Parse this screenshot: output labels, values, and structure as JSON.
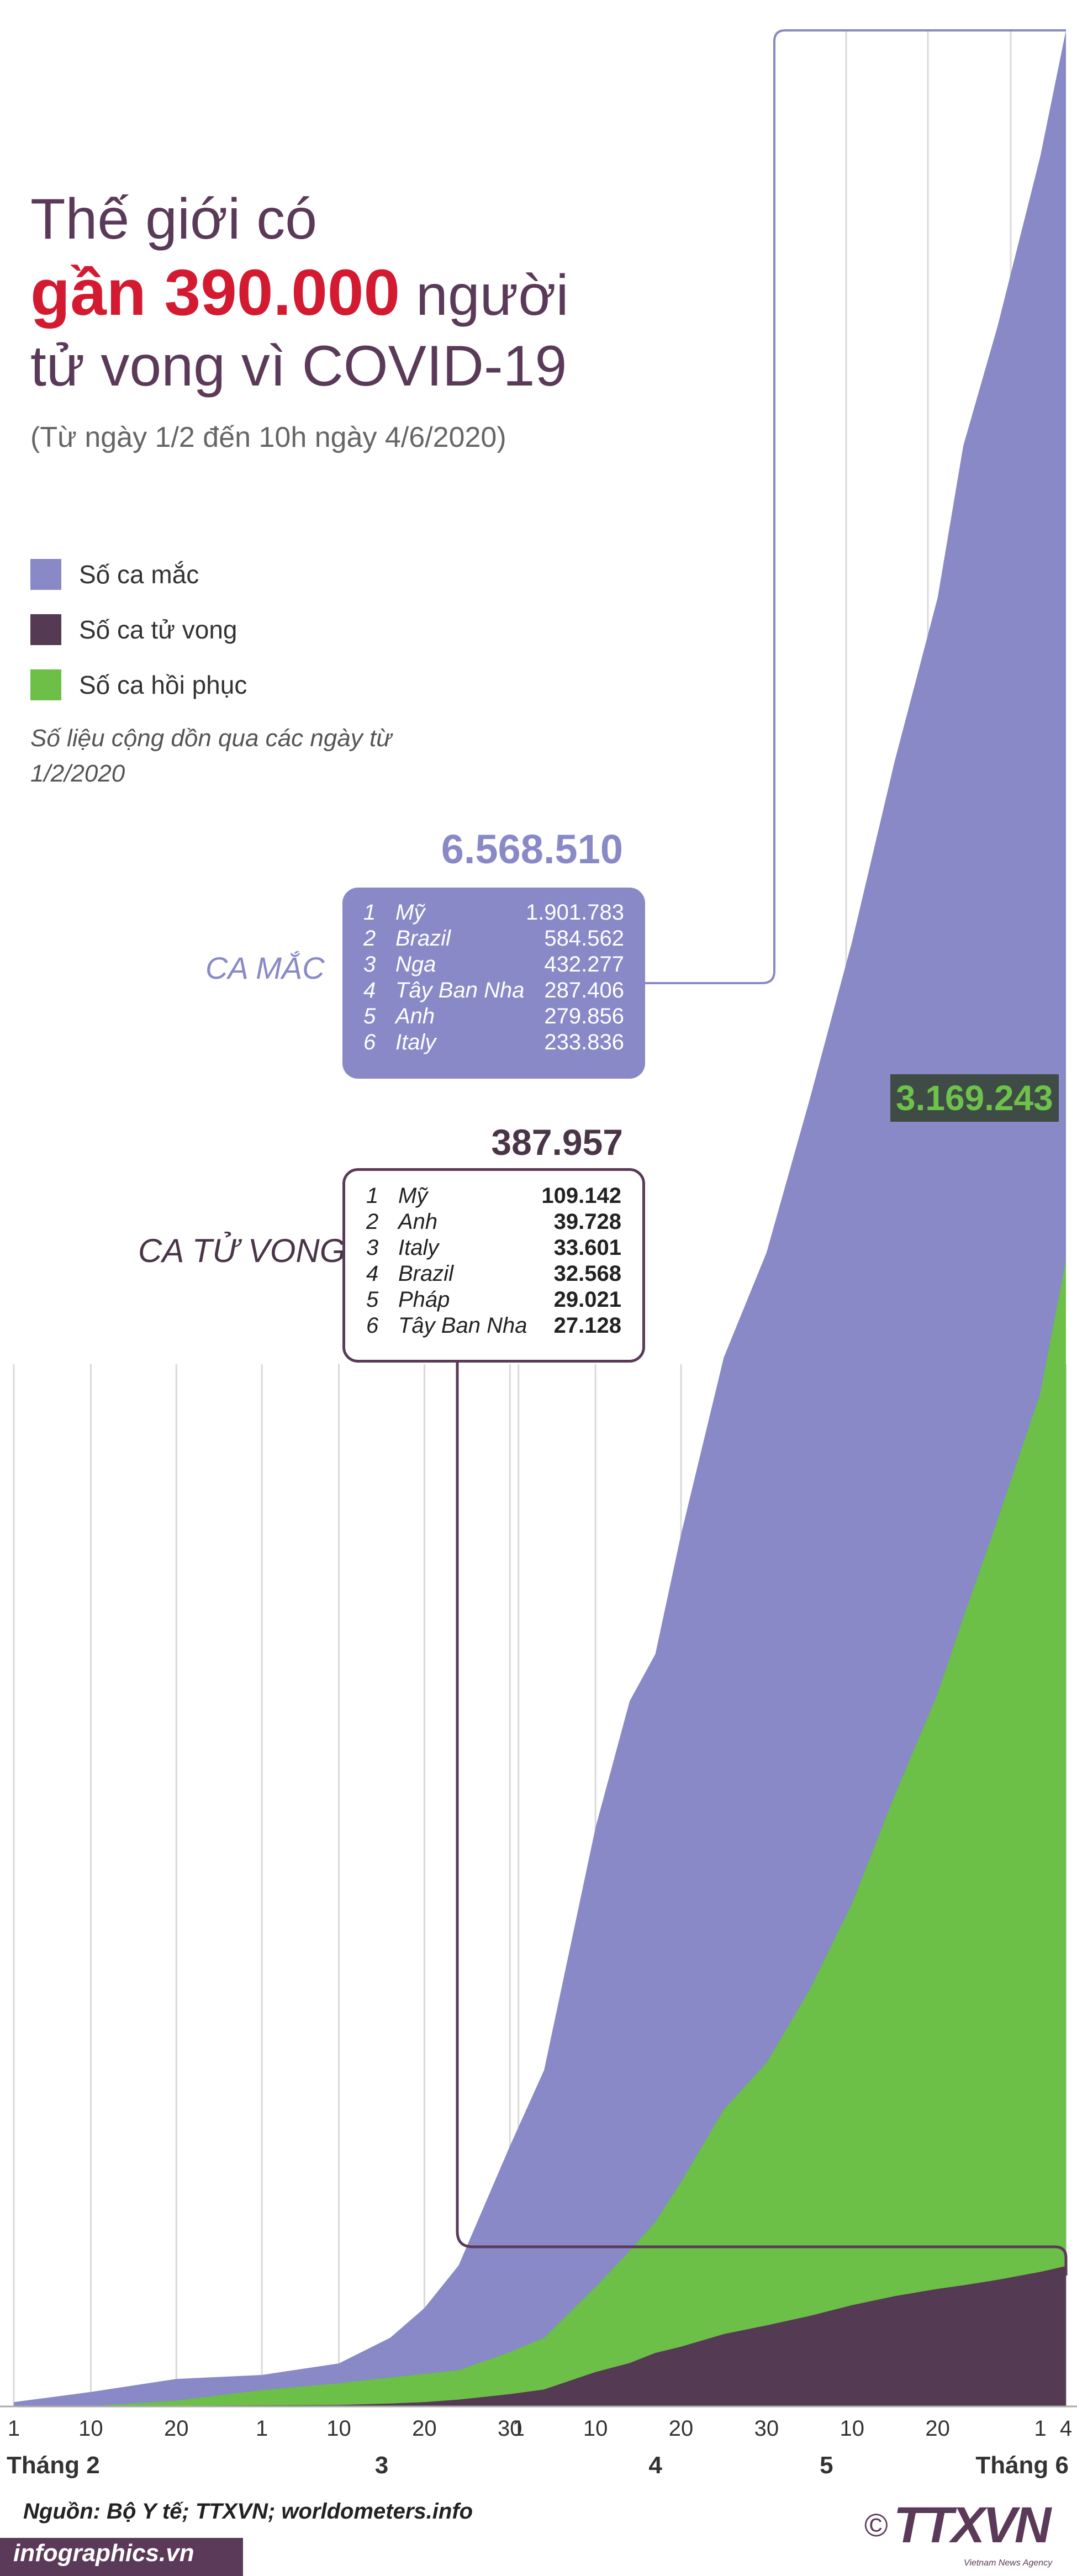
{
  "title": {
    "line1": "Thế giới có",
    "highlight": "gần 390.000",
    "line2_rest": "người",
    "line3": "tử vong vì COVID-19",
    "subtitle": "(Từ ngày 1/2 đến 10h ngày 4/6/2020)"
  },
  "legend": {
    "cases": "Số ca mắc",
    "deaths": "Số ca tử vong",
    "recovered": "Số ca hồi phục"
  },
  "note": "Số liệu cộng dồn qua các ngày từ 1/2/2020",
  "cases": {
    "label": "CA MẮC",
    "total": "6.568.510",
    "top": [
      {
        "rank": "1",
        "country": "Mỹ",
        "value": "1.901.783"
      },
      {
        "rank": "2",
        "country": "Brazil",
        "value": "584.562"
      },
      {
        "rank": "3",
        "country": "Nga",
        "value": "432.277"
      },
      {
        "rank": "4",
        "country": "Tây Ban Nha",
        "value": "287.406"
      },
      {
        "rank": "5",
        "country": "Anh",
        "value": "279.856"
      },
      {
        "rank": "6",
        "country": "Italy",
        "value": "233.836"
      }
    ]
  },
  "deaths": {
    "label": "CA TỬ VONG",
    "total": "387.957",
    "top": [
      {
        "rank": "1",
        "country": "Mỹ",
        "value": "109.142"
      },
      {
        "rank": "2",
        "country": "Anh",
        "value": "39.728"
      },
      {
        "rank": "3",
        "country": "Italy",
        "value": "33.601"
      },
      {
        "rank": "4",
        "country": "Brazil",
        "value": "32.568"
      },
      {
        "rank": "5",
        "country": "Pháp",
        "value": "29.021"
      },
      {
        "rank": "6",
        "country": "Tây Ban Nha",
        "value": "27.128"
      }
    ]
  },
  "recovered": {
    "total": "3.169.243"
  },
  "footer": {
    "source": "Nguồn: Bộ Y tế; TTXVN; worldometers.info",
    "brand": "infographics.vn",
    "agency": "TTXVN",
    "agency_sub": "Vietnam News Agency",
    "copyright": "©"
  },
  "colors": {
    "cases": "#8889c6",
    "deaths": "#543a52",
    "recovered": "#6cbf47",
    "title": "#5a3a58",
    "highlight": "#d31a30"
  },
  "chart_data": {
    "type": "area",
    "x_ticks": [
      {
        "day": 0,
        "label": "1"
      },
      {
        "day": 9,
        "label": "10"
      },
      {
        "day": 19,
        "label": "20"
      },
      {
        "day": 29,
        "label": "1"
      },
      {
        "day": 38,
        "label": "10"
      },
      {
        "day": 48,
        "label": "20"
      },
      {
        "day": 58,
        "label": "30"
      },
      {
        "day": 59,
        "label": "1"
      },
      {
        "day": 68,
        "label": "10"
      },
      {
        "day": 78,
        "label": "20"
      },
      {
        "day": 88,
        "label": "30"
      },
      {
        "day": 98,
        "label": "10"
      },
      {
        "day": 108,
        "label": "20"
      },
      {
        "day": 120,
        "label": "1"
      },
      {
        "day": 123,
        "label": "4"
      }
    ],
    "month_labels": [
      {
        "day": 0,
        "label": "Tháng 2"
      },
      {
        "day": 43,
        "label": "3"
      },
      {
        "day": 75,
        "label": "4"
      },
      {
        "day": 95,
        "label": "5"
      },
      {
        "day": 121,
        "label": "Tháng 6"
      }
    ],
    "x": [
      0,
      9,
      19,
      29,
      38,
      44,
      48,
      52,
      58,
      62,
      68,
      72,
      75,
      78,
      83,
      88,
      93,
      98,
      103,
      108,
      111,
      115,
      120,
      123
    ],
    "series": [
      {
        "key": "cases",
        "values": [
          12000,
          40000,
          76000,
          87000,
          119000,
          190000,
          272000,
          390000,
          720000,
          930000,
          1600000,
          1950000,
          2080000,
          2410000,
          2900000,
          3190000,
          3610000,
          4050000,
          4550000,
          5000000,
          5420000,
          5750000,
          6220000,
          6568510
        ]
      },
      {
        "key": "recovered",
        "values": [
          300,
          1000,
          16000,
          45000,
          64000,
          80000,
          90000,
          100000,
          150000,
          190000,
          330000,
          430000,
          510000,
          620000,
          820000,
          950000,
          1150000,
          1390000,
          1690000,
          1970000,
          2180000,
          2450000,
          2800000,
          3169243
        ]
      },
      {
        "key": "deaths",
        "values": [
          250,
          900,
          2200,
          2990,
          4000,
          7900,
          12000,
          19000,
          34000,
          47000,
          95000,
          120000,
          148000,
          165000,
          200000,
          224000,
          250000,
          280000,
          305000,
          325000,
          335000,
          350000,
          372000,
          387957
        ]
      }
    ],
    "ylim": [
      0,
      6568510
    ]
  }
}
